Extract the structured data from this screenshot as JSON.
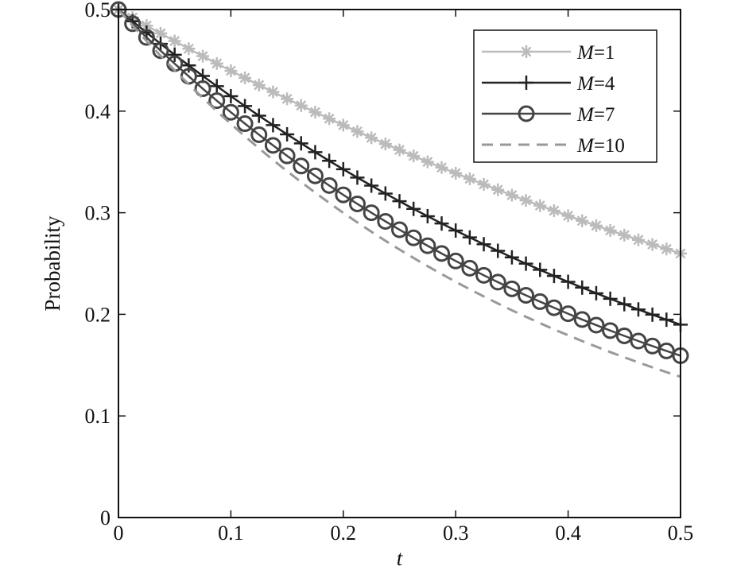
{
  "chart_data": {
    "type": "line",
    "xlabel": "t",
    "ylabel": "Probability",
    "xlim": [
      0,
      0.5
    ],
    "ylim": [
      0,
      0.5
    ],
    "xticks": [
      "0",
      "0.1",
      "0.2",
      "0.3",
      "0.4",
      "0.5"
    ],
    "yticks": [
      "0",
      "0.1",
      "0.2",
      "0.3",
      "0.4",
      "0.5"
    ],
    "grid": false,
    "legend_position": "top-right",
    "x": [
      0,
      0.0125,
      0.025,
      0.0375,
      0.05,
      0.0625,
      0.075,
      0.0875,
      0.1,
      0.1125,
      0.125,
      0.1375,
      0.15,
      0.1625,
      0.175,
      0.1875,
      0.2,
      0.2125,
      0.225,
      0.2375,
      0.25,
      0.2625,
      0.275,
      0.2875,
      0.3,
      0.3125,
      0.325,
      0.3375,
      0.35,
      0.3625,
      0.375,
      0.3875,
      0.4,
      0.4125,
      0.425,
      0.4375,
      0.45,
      0.4625,
      0.475,
      0.4875,
      0.5
    ],
    "series": [
      {
        "name": "M=1",
        "name_italic": "M",
        "name_rest": "=1",
        "color": "#bbbbbb",
        "marker": "asterisk",
        "line": "solid",
        "values": [
          0.5,
          0.4921,
          0.4842,
          0.4765,
          0.469,
          0.4615,
          0.4541,
          0.4469,
          0.4397,
          0.4327,
          0.4257,
          0.4189,
          0.4121,
          0.4055,
          0.399,
          0.3926,
          0.3862,
          0.38,
          0.3738,
          0.3677,
          0.3618,
          0.3559,
          0.3501,
          0.3445,
          0.3389,
          0.3334,
          0.3279,
          0.3226,
          0.3173,
          0.3121,
          0.307,
          0.302,
          0.297,
          0.2921,
          0.2873,
          0.2826,
          0.2779,
          0.2733,
          0.2688,
          0.2643,
          0.2599
        ]
      },
      {
        "name": "M=4",
        "name_italic": "M",
        "name_rest": "=4",
        "color": "#222222",
        "marker": "plus",
        "line": "solid",
        "values": [
          0.5,
          0.4885,
          0.4773,
          0.4663,
          0.4555,
          0.445,
          0.4347,
          0.4246,
          0.4147,
          0.405,
          0.3955,
          0.3862,
          0.3772,
          0.3683,
          0.3596,
          0.3511,
          0.3428,
          0.3346,
          0.3267,
          0.3189,
          0.3113,
          0.3038,
          0.2966,
          0.2894,
          0.2825,
          0.2757,
          0.269,
          0.2625,
          0.2561,
          0.2499,
          0.2438,
          0.2378,
          0.232,
          0.2263,
          0.2208,
          0.2153,
          0.21,
          0.2048,
          0.1997,
          0.1947,
          0.1898
        ]
      },
      {
        "name": "M=7",
        "name_italic": "M",
        "name_rest": "=7",
        "color": "#444444",
        "marker": "circle",
        "line": "solid",
        "values": [
          0.5,
          0.4861,
          0.4726,
          0.4595,
          0.4467,
          0.4343,
          0.4221,
          0.4103,
          0.3989,
          0.3877,
          0.3768,
          0.3663,
          0.356,
          0.346,
          0.3363,
          0.3268,
          0.3176,
          0.3087,
          0.3,
          0.2915,
          0.2833,
          0.2753,
          0.2675,
          0.2599,
          0.2525,
          0.2454,
          0.2384,
          0.2317,
          0.2251,
          0.2187,
          0.2125,
          0.2065,
          0.2006,
          0.1949,
          0.1894,
          0.184,
          0.1788,
          0.1737,
          0.1688,
          0.164,
          0.1593
        ]
      },
      {
        "name": "M=10",
        "name_italic": "M",
        "name_rest": "=10",
        "color": "#999999",
        "marker": "none",
        "line": "dashed",
        "values": [
          0.5,
          0.4843,
          0.4691,
          0.4544,
          0.4402,
          0.4264,
          0.413,
          0.4,
          0.3874,
          0.3752,
          0.3634,
          0.352,
          0.3409,
          0.3302,
          0.3198,
          0.3097,
          0.2999,
          0.2905,
          0.2813,
          0.2724,
          0.2638,
          0.2555,
          0.2474,
          0.2396,
          0.232,
          0.2247,
          0.2176,
          0.2107,
          0.204,
          0.1976,
          0.1913,
          0.1852,
          0.1794,
          0.1737,
          0.1682,
          0.1628,
          0.1577,
          0.1527,
          0.1478,
          0.1431,
          0.1386
        ]
      }
    ]
  }
}
